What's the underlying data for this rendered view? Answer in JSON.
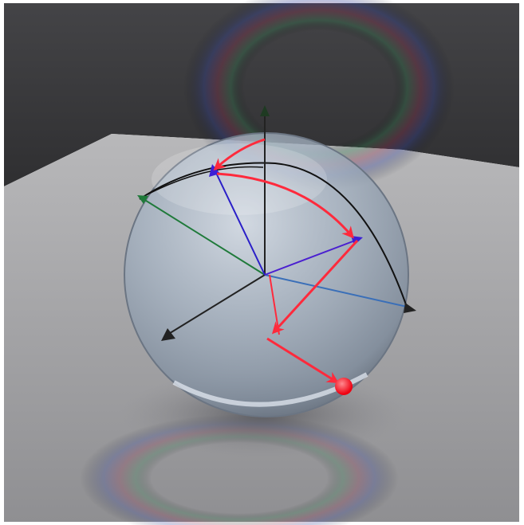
{
  "scene": {
    "colors": {
      "wall": "#3a3a3c",
      "floor": "#a9a9ab",
      "sphere_glass": "#9aa8ba",
      "x_axis": "#1f7a3a",
      "y_axis": "#3a6fb8",
      "z_axis": "#222222",
      "state_vector": "#3b1fd6",
      "trajectory": "#ff2a3c",
      "final_state": "#ff1020",
      "great_circle": "#111111"
    },
    "icons": [
      "bloch-sphere",
      "axis-arrowhead",
      "trajectory-arrow",
      "state-point"
    ]
  }
}
